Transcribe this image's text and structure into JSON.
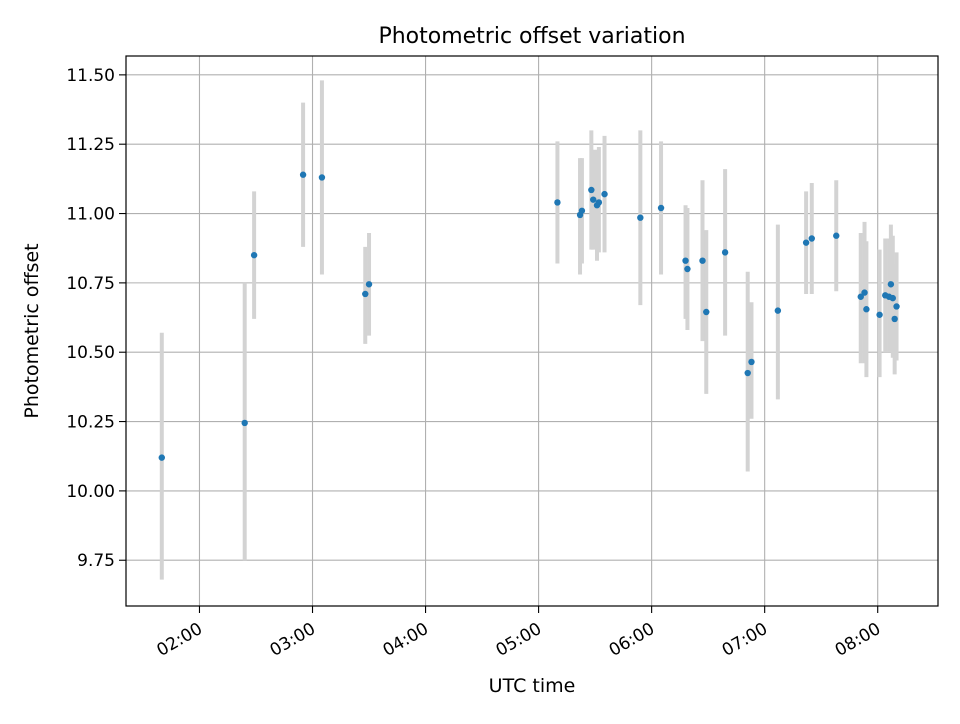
{
  "chart_data": {
    "type": "scatter",
    "title": "Photometric offset variation",
    "xlabel": "UTC time",
    "ylabel": "Photometric offset",
    "x_ticks": [
      "02:00",
      "03:00",
      "04:00",
      "05:00",
      "06:00",
      "07:00",
      "08:00"
    ],
    "y_ticks": [
      "9.75",
      "10.00",
      "10.25",
      "10.50",
      "10.75",
      "11.00",
      "11.25",
      "11.50"
    ],
    "xlim": [
      "01:21",
      "08:32"
    ],
    "ylim": [
      9.585,
      11.568
    ],
    "grid": true,
    "marker_color": "#1f77b4",
    "errorbar_color": "#d3d3d3",
    "series": [
      {
        "points": [
          {
            "x": "01:40",
            "y": 10.12,
            "ylow": 9.68,
            "yhigh": 10.57
          },
          {
            "x": "02:24",
            "y": 10.245,
            "ylow": 9.75,
            "yhigh": 10.75
          },
          {
            "x": "02:29",
            "y": 10.85,
            "ylow": 10.62,
            "yhigh": 11.08
          },
          {
            "x": "02:55",
            "y": 11.14,
            "ylow": 10.88,
            "yhigh": 11.4
          },
          {
            "x": "03:05",
            "y": 11.13,
            "ylow": 10.78,
            "yhigh": 11.48
          },
          {
            "x": "03:28",
            "y": 10.71,
            "ylow": 10.53,
            "yhigh": 10.88
          },
          {
            "x": "03:30",
            "y": 10.745,
            "ylow": 10.56,
            "yhigh": 10.93
          },
          {
            "x": "05:10",
            "y": 11.04,
            "ylow": 10.82,
            "yhigh": 11.26
          },
          {
            "x": "05:22",
            "y": 10.995,
            "ylow": 10.78,
            "yhigh": 11.2
          },
          {
            "x": "05:23",
            "y": 11.01,
            "ylow": 10.82,
            "yhigh": 11.2
          },
          {
            "x": "05:28",
            "y": 11.085,
            "ylow": 10.87,
            "yhigh": 11.3
          },
          {
            "x": "05:29",
            "y": 11.05,
            "ylow": 10.87,
            "yhigh": 11.23
          },
          {
            "x": "05:31",
            "y": 11.03,
            "ylow": 10.83,
            "yhigh": 11.23
          },
          {
            "x": "05:32",
            "y": 11.04,
            "ylow": 10.86,
            "yhigh": 11.24
          },
          {
            "x": "05:35",
            "y": 11.07,
            "ylow": 10.86,
            "yhigh": 11.28
          },
          {
            "x": "05:54",
            "y": 10.985,
            "ylow": 10.67,
            "yhigh": 11.3
          },
          {
            "x": "06:05",
            "y": 11.02,
            "ylow": 10.78,
            "yhigh": 11.26
          },
          {
            "x": "06:18",
            "y": 10.83,
            "ylow": 10.62,
            "yhigh": 11.03
          },
          {
            "x": "06:19",
            "y": 10.8,
            "ylow": 10.58,
            "yhigh": 11.02
          },
          {
            "x": "06:27",
            "y": 10.83,
            "ylow": 10.54,
            "yhigh": 11.12
          },
          {
            "x": "06:29",
            "y": 10.645,
            "ylow": 10.35,
            "yhigh": 10.94
          },
          {
            "x": "06:39",
            "y": 10.86,
            "ylow": 10.56,
            "yhigh": 11.16
          },
          {
            "x": "06:51",
            "y": 10.425,
            "ylow": 10.07,
            "yhigh": 10.79
          },
          {
            "x": "06:53",
            "y": 10.465,
            "ylow": 10.26,
            "yhigh": 10.68
          },
          {
            "x": "07:07",
            "y": 10.65,
            "ylow": 10.33,
            "yhigh": 10.96
          },
          {
            "x": "07:22",
            "y": 10.895,
            "ylow": 10.71,
            "yhigh": 11.08
          },
          {
            "x": "07:25",
            "y": 10.91,
            "ylow": 10.71,
            "yhigh": 11.11
          },
          {
            "x": "07:38",
            "y": 10.92,
            "ylow": 10.72,
            "yhigh": 11.12
          },
          {
            "x": "07:51",
            "y": 10.7,
            "ylow": 10.46,
            "yhigh": 10.93
          },
          {
            "x": "07:53",
            "y": 10.715,
            "ylow": 10.46,
            "yhigh": 10.97
          },
          {
            "x": "07:54",
            "y": 10.655,
            "ylow": 10.41,
            "yhigh": 10.9
          },
          {
            "x": "08:01",
            "y": 10.635,
            "ylow": 10.41,
            "yhigh": 10.87
          },
          {
            "x": "08:04",
            "y": 10.705,
            "ylow": 10.5,
            "yhigh": 10.91
          },
          {
            "x": "08:06",
            "y": 10.7,
            "ylow": 10.5,
            "yhigh": 10.91
          },
          {
            "x": "08:07",
            "y": 10.745,
            "ylow": 10.53,
            "yhigh": 10.96
          },
          {
            "x": "08:08",
            "y": 10.695,
            "ylow": 10.48,
            "yhigh": 10.92
          },
          {
            "x": "08:09",
            "y": 10.62,
            "ylow": 10.42,
            "yhigh": 10.82
          },
          {
            "x": "08:10",
            "y": 10.665,
            "ylow": 10.47,
            "yhigh": 10.86
          }
        ]
      }
    ]
  }
}
